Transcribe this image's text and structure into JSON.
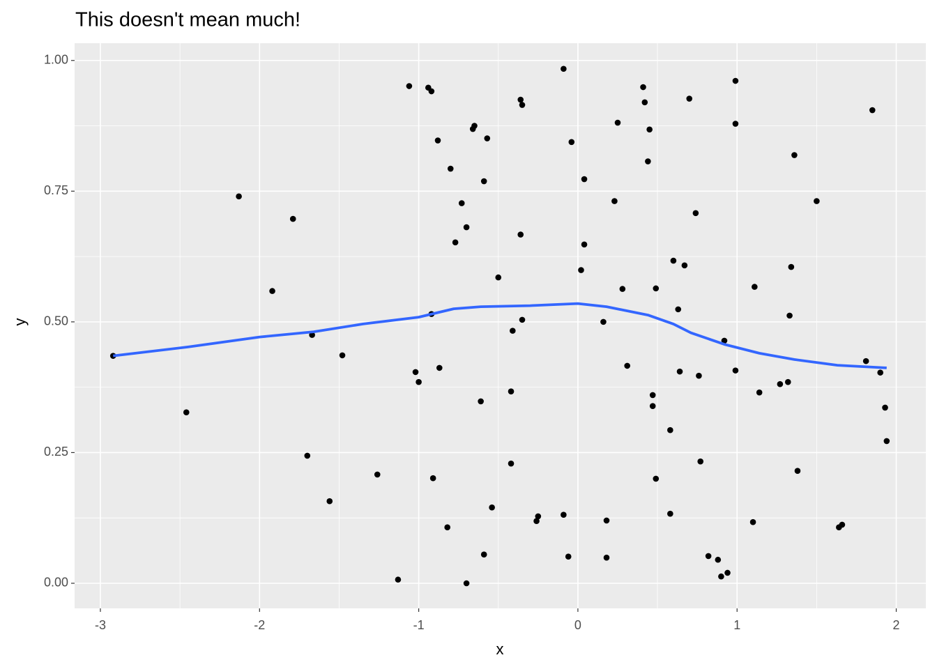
{
  "chart_data": {
    "type": "scatter",
    "title": "This doesn't mean much!",
    "x_label": "x",
    "y_label": "y",
    "xlim": [
      -3.162,
      2.186
    ],
    "ylim": [
      -0.048,
      1.033
    ],
    "xticks": [
      -3,
      -2,
      -1,
      0,
      1,
      2
    ],
    "yticks": [
      {
        "value": 0,
        "label": "0.00"
      },
      {
        "value": 0.25,
        "label": "0.25"
      },
      {
        "value": 0.5,
        "label": "0.50"
      },
      {
        "value": 0.75,
        "label": "0.75"
      },
      {
        "value": 1,
        "label": "1.00"
      }
    ],
    "grid": true,
    "points": {
      "color": "#000000",
      "x": [
        -2.92,
        -2.46,
        -2.13,
        -1.92,
        -1.79,
        -1.7,
        -1.67,
        -1.56,
        -1.48,
        -1.26,
        -1.13,
        -1.06,
        -1.02,
        -1.0,
        -0.94,
        -0.92,
        -0.92,
        -0.91,
        -0.88,
        -0.87,
        -0.82,
        -0.8,
        -0.77,
        -0.73,
        -0.7,
        -0.7,
        -0.66,
        -0.65,
        -0.61,
        -0.59,
        -0.59,
        -0.57,
        -0.54,
        -0.5,
        -0.42,
        -0.42,
        -0.41,
        -0.36,
        -0.36,
        -0.35,
        -0.35,
        -0.26,
        -0.25,
        -0.09,
        -0.09,
        -0.06,
        -0.04,
        0.02,
        0.04,
        0.04,
        0.16,
        0.18,
        0.18,
        0.23,
        0.25,
        0.28,
        0.31,
        0.41,
        0.42,
        0.44,
        0.45,
        0.47,
        0.47,
        0.49,
        0.49,
        0.58,
        0.58,
        0.6,
        0.63,
        0.64,
        0.67,
        0.7,
        0.74,
        0.76,
        0.77,
        0.82,
        0.88,
        0.9,
        0.92,
        0.94,
        0.99,
        0.99,
        0.99,
        1.1,
        1.11,
        1.14,
        1.27,
        1.32,
        1.33,
        1.34,
        1.36,
        1.38,
        1.5,
        1.64,
        1.66,
        1.81,
        1.85,
        1.9,
        1.93,
        1.94
      ],
      "y": [
        0.435,
        0.327,
        0.74,
        0.559,
        0.697,
        0.244,
        0.475,
        0.157,
        0.436,
        0.208,
        0.007,
        0.951,
        0.404,
        0.385,
        0.948,
        0.941,
        0.515,
        0.201,
        0.847,
        0.412,
        0.107,
        0.793,
        0.652,
        0.727,
        0.681,
        0.0,
        0.869,
        0.875,
        0.348,
        0.769,
        0.055,
        0.851,
        0.145,
        0.585,
        0.367,
        0.229,
        0.483,
        0.667,
        0.925,
        0.915,
        0.504,
        0.119,
        0.128,
        0.984,
        0.131,
        0.051,
        0.844,
        0.599,
        0.648,
        0.773,
        0.5,
        0.12,
        0.049,
        0.731,
        0.881,
        0.563,
        0.416,
        0.949,
        0.92,
        0.807,
        0.868,
        0.36,
        0.339,
        0.564,
        0.2,
        0.293,
        0.133,
        0.617,
        0.524,
        0.405,
        0.608,
        0.927,
        0.708,
        0.397,
        0.233,
        0.052,
        0.045,
        0.013,
        0.464,
        0.02,
        0.407,
        0.961,
        0.879,
        0.117,
        0.567,
        0.365,
        0.381,
        0.385,
        0.512,
        0.605,
        0.819,
        0.215,
        0.731,
        0.107,
        0.112,
        0.425,
        0.905,
        0.403,
        0.336,
        0.272
      ]
    },
    "smooth": {
      "color": "#3366FF",
      "x": [
        -2.92,
        -2.45,
        -2.0,
        -1.66,
        -1.35,
        -1.0,
        -0.78,
        -0.61,
        -0.3,
        0,
        0.18,
        0.44,
        0.6,
        0.71,
        0.92,
        1.14,
        1.36,
        1.63,
        1.94
      ],
      "y": [
        0.435,
        0.452,
        0.471,
        0.481,
        0.496,
        0.509,
        0.525,
        0.529,
        0.531,
        0.535,
        0.529,
        0.513,
        0.496,
        0.479,
        0.457,
        0.44,
        0.428,
        0.417,
        0.412
      ]
    }
  }
}
